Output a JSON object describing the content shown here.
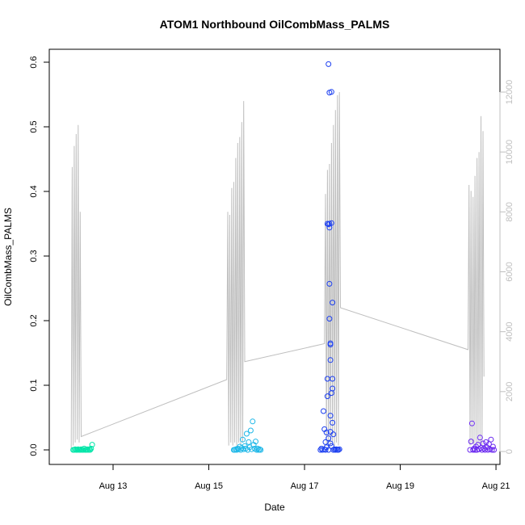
{
  "chart_data": {
    "type": "scatter",
    "title": "ATOM1 Northbound OilCombMass_PALMS",
    "xlabel": "Date",
    "ylabel": "OilCombMass_PALMS",
    "x_is_date": true,
    "x_range": [
      "2016-08-11T16:00",
      "2016-08-21T02:00"
    ],
    "x_ticks": [
      {
        "value": "2016-08-13",
        "label": "Aug 13"
      },
      {
        "value": "2016-08-15",
        "label": "Aug 15"
      },
      {
        "value": "2016-08-17",
        "label": "Aug 17"
      },
      {
        "value": "2016-08-19",
        "label": "Aug 19"
      },
      {
        "value": "2016-08-21",
        "label": "Aug 21"
      }
    ],
    "ylim": [
      0,
      0.6
    ],
    "y_ticks": [
      "0.0",
      "0.1",
      "0.2",
      "0.3",
      "0.4",
      "0.5",
      "0.6"
    ],
    "y2lim": [
      0,
      12000
    ],
    "y2_ticks": [
      "0",
      "2000",
      "4000",
      "6000",
      "8000",
      "10000",
      "12000"
    ],
    "grid": false,
    "legend": "none",
    "colors": {
      "altitude_line": "#bfbfbf",
      "flight_1": "#00e5a8",
      "flight_2": "#1fb8e8",
      "flight_3": "#1c3ff0",
      "flight_4": "#6a28f0",
      "axis": "#000000",
      "right_axis": "#bfbfbf"
    },
    "series": [
      {
        "color": "#00e5a8",
        "points": [
          [
            "2016-08-12T04:00",
            0.0
          ],
          [
            "2016-08-12T04:30",
            0.0
          ],
          [
            "2016-08-12T05:00",
            0.001
          ],
          [
            "2016-08-12T05:30",
            0.0
          ],
          [
            "2016-08-12T06:00",
            0.0
          ],
          [
            "2016-08-12T06:30",
            0.001
          ],
          [
            "2016-08-12T07:00",
            0.0
          ],
          [
            "2016-08-12T07:30",
            0.0
          ],
          [
            "2016-08-12T08:00",
            0.001
          ],
          [
            "2016-08-12T08:30",
            0.0
          ],
          [
            "2016-08-12T09:00",
            0.0
          ],
          [
            "2016-08-12T09:30",
            0.002
          ],
          [
            "2016-08-12T10:00",
            0.0
          ],
          [
            "2016-08-12T10:30",
            0.0
          ],
          [
            "2016-08-12T11:00",
            0.001
          ],
          [
            "2016-08-12T11:30",
            0.0
          ],
          [
            "2016-08-12T12:00",
            0.001
          ],
          [
            "2016-08-12T12:30",
            0.0
          ],
          [
            "2016-08-12T13:00",
            0.002
          ],
          [
            "2016-08-12T13:30",
            0.008
          ]
        ]
      },
      {
        "color": "#1fb8e8",
        "points": [
          [
            "2016-08-15T12:30",
            0.0
          ],
          [
            "2016-08-15T13:00",
            0.0
          ],
          [
            "2016-08-15T13:30",
            0.001
          ],
          [
            "2016-08-15T14:00",
            0.0
          ],
          [
            "2016-08-15T14:30",
            0.002
          ],
          [
            "2016-08-15T15:00",
            0.001
          ],
          [
            "2016-08-15T15:30",
            0.005
          ],
          [
            "2016-08-15T16:00",
            0.0
          ],
          [
            "2016-08-15T16:30",
            0.003
          ],
          [
            "2016-08-15T17:00",
            0.016
          ],
          [
            "2016-08-15T17:30",
            0.001
          ],
          [
            "2016-08-15T18:00",
            0.006
          ],
          [
            "2016-08-15T18:30",
            0.002
          ],
          [
            "2016-08-15T19:00",
            0.025
          ],
          [
            "2016-08-15T19:30",
            0.0
          ],
          [
            "2016-08-15T20:00",
            0.012
          ],
          [
            "2016-08-15T20:30",
            0.004
          ],
          [
            "2016-08-15T21:00",
            0.03
          ],
          [
            "2016-08-15T21:30",
            0.001
          ],
          [
            "2016-08-15T22:00",
            0.044
          ],
          [
            "2016-08-15T22:30",
            0.008
          ],
          [
            "2016-08-15T23:00",
            0.002
          ],
          [
            "2016-08-15T23:30",
            0.013
          ],
          [
            "2016-08-16T00:00",
            0.0
          ],
          [
            "2016-08-16T00:30",
            0.002
          ],
          [
            "2016-08-16T01:00",
            0.0
          ],
          [
            "2016-08-16T01:30",
            0.001
          ],
          [
            "2016-08-16T02:00",
            0.0
          ]
        ]
      },
      {
        "color": "#1c3ff0",
        "points": [
          [
            "2016-08-17T08:00",
            0.0
          ],
          [
            "2016-08-17T08:30",
            0.002
          ],
          [
            "2016-08-17T09:00",
            0.0
          ],
          [
            "2016-08-17T09:30",
            0.06
          ],
          [
            "2016-08-17T10:00",
            0.001
          ],
          [
            "2016-08-17T10:00",
            0.032
          ],
          [
            "2016-08-17T10:30",
            0.012
          ],
          [
            "2016-08-17T10:30",
            0.0
          ],
          [
            "2016-08-17T11:00",
            0.027
          ],
          [
            "2016-08-17T11:00",
            0.004
          ],
          [
            "2016-08-17T11:30",
            0.11
          ],
          [
            "2016-08-17T11:30",
            0.35
          ],
          [
            "2016-08-17T11:30",
            0.083
          ],
          [
            "2016-08-17T12:00",
            0.597
          ],
          [
            "2016-08-17T12:00",
            0.349
          ],
          [
            "2016-08-17T12:00",
            0.018
          ],
          [
            "2016-08-17T12:00",
            0.0
          ],
          [
            "2016-08-17T12:30",
            0.35
          ],
          [
            "2016-08-17T12:30",
            0.344
          ],
          [
            "2016-08-17T12:30",
            0.553
          ],
          [
            "2016-08-17T12:30",
            0.257
          ],
          [
            "2016-08-17T12:30",
            0.203
          ],
          [
            "2016-08-17T13:00",
            0.165
          ],
          [
            "2016-08-17T13:00",
            0.163
          ],
          [
            "2016-08-17T13:00",
            0.139
          ],
          [
            "2016-08-17T13:00",
            0.028
          ],
          [
            "2016-08-17T13:00",
            0.053
          ],
          [
            "2016-08-17T13:00",
            0.01
          ],
          [
            "2016-08-17T13:30",
            0.554
          ],
          [
            "2016-08-17T13:30",
            0.351
          ],
          [
            "2016-08-17T13:30",
            0.088
          ],
          [
            "2016-08-17T13:30",
            0.006
          ],
          [
            "2016-08-17T14:00",
            0.228
          ],
          [
            "2016-08-17T14:00",
            0.11
          ],
          [
            "2016-08-17T14:00",
            0.095
          ],
          [
            "2016-08-17T14:00",
            0.042
          ],
          [
            "2016-08-17T14:30",
            0.024
          ],
          [
            "2016-08-17T14:30",
            0.0
          ],
          [
            "2016-08-17T15:00",
            0.001
          ],
          [
            "2016-08-17T15:30",
            0.0
          ],
          [
            "2016-08-17T16:00",
            0.001
          ],
          [
            "2016-08-17T16:30",
            0.0
          ],
          [
            "2016-08-17T17:00",
            0.0
          ],
          [
            "2016-08-17T17:30",
            0.001
          ]
        ]
      },
      {
        "color": "#6a28f0",
        "points": [
          [
            "2016-08-20T11:00",
            0.0
          ],
          [
            "2016-08-20T11:30",
            0.013
          ],
          [
            "2016-08-20T12:00",
            0.041
          ],
          [
            "2016-08-20T12:30",
            0.0
          ],
          [
            "2016-08-20T13:00",
            0.002
          ],
          [
            "2016-08-20T13:30",
            0.0
          ],
          [
            "2016-08-20T14:00",
            0.005
          ],
          [
            "2016-08-20T14:30",
            0.0
          ],
          [
            "2016-08-20T15:00",
            0.008
          ],
          [
            "2016-08-20T15:30",
            0.001
          ],
          [
            "2016-08-20T16:00",
            0.019
          ],
          [
            "2016-08-20T16:30",
            0.003
          ],
          [
            "2016-08-20T17:00",
            0.0
          ],
          [
            "2016-08-20T17:30",
            0.01
          ],
          [
            "2016-08-20T18:00",
            0.002
          ],
          [
            "2016-08-20T18:30",
            0.0
          ],
          [
            "2016-08-20T19:00",
            0.012
          ],
          [
            "2016-08-20T19:30",
            0.004
          ],
          [
            "2016-08-20T20:00",
            0.0
          ],
          [
            "2016-08-20T20:30",
            0.009
          ],
          [
            "2016-08-20T21:00",
            0.001
          ],
          [
            "2016-08-20T21:30",
            0.016
          ],
          [
            "2016-08-20T22:00",
            0.0
          ],
          [
            "2016-08-20T22:30",
            0.005
          ],
          [
            "2016-08-20T23:00",
            0.0
          ]
        ]
      }
    ],
    "altitude": [
      [
        "2016-08-12T03:00",
        100
      ],
      [
        "2016-08-12T03:30",
        9500
      ],
      [
        "2016-08-12T04:00",
        200
      ],
      [
        "2016-08-12T04:30",
        10200
      ],
      [
        "2016-08-12T05:00",
        300
      ],
      [
        "2016-08-12T05:30",
        10600
      ],
      [
        "2016-08-12T06:00",
        400
      ],
      [
        "2016-08-12T06:30",
        10900
      ],
      [
        "2016-08-12T07:00",
        300
      ],
      [
        "2016-08-12T07:30",
        8000
      ],
      [
        "2016-08-12T08:00",
        500
      ],
      [
        "2016-08-15T09:00",
        2400
      ],
      [
        "2016-08-15T09:30",
        8000
      ],
      [
        "2016-08-15T10:00",
        200
      ],
      [
        "2016-08-15T10:30",
        7900
      ],
      [
        "2016-08-15T11:00",
        300
      ],
      [
        "2016-08-15T11:30",
        8800
      ],
      [
        "2016-08-15T12:00",
        200
      ],
      [
        "2016-08-15T12:30",
        9000
      ],
      [
        "2016-08-15T13:00",
        300
      ],
      [
        "2016-08-15T13:30",
        9800
      ],
      [
        "2016-08-15T14:00",
        200
      ],
      [
        "2016-08-15T14:30",
        10300
      ],
      [
        "2016-08-15T15:00",
        300
      ],
      [
        "2016-08-15T15:30",
        10500
      ],
      [
        "2016-08-15T16:00",
        200
      ],
      [
        "2016-08-15T16:30",
        11000
      ],
      [
        "2016-08-15T17:00",
        300
      ],
      [
        "2016-08-15T17:30",
        11700
      ],
      [
        "2016-08-15T18:00",
        3000
      ],
      [
        "2016-08-17T10:00",
        3600
      ],
      [
        "2016-08-17T10:30",
        8600
      ],
      [
        "2016-08-17T11:00",
        200
      ],
      [
        "2016-08-17T11:30",
        9400
      ],
      [
        "2016-08-17T12:00",
        300
      ],
      [
        "2016-08-17T12:30",
        9600
      ],
      [
        "2016-08-17T13:00",
        200
      ],
      [
        "2016-08-17T13:30",
        10300
      ],
      [
        "2016-08-17T14:00",
        300
      ],
      [
        "2016-08-17T14:30",
        10900
      ],
      [
        "2016-08-17T15:00",
        200
      ],
      [
        "2016-08-17T15:30",
        11400
      ],
      [
        "2016-08-17T16:00",
        300
      ],
      [
        "2016-08-17T16:30",
        11900
      ],
      [
        "2016-08-17T17:00",
        200
      ],
      [
        "2016-08-17T17:30",
        12000
      ],
      [
        "2016-08-17T18:00",
        4800
      ],
      [
        "2016-08-20T10:00",
        3400
      ],
      [
        "2016-08-20T10:30",
        8900
      ],
      [
        "2016-08-20T11:00",
        200
      ],
      [
        "2016-08-20T11:30",
        8700
      ],
      [
        "2016-08-20T12:00",
        300
      ],
      [
        "2016-08-20T12:30",
        8500
      ],
      [
        "2016-08-20T13:00",
        200
      ],
      [
        "2016-08-20T13:30",
        9200
      ],
      [
        "2016-08-20T14:00",
        300
      ],
      [
        "2016-08-20T14:30",
        9800
      ],
      [
        "2016-08-20T15:00",
        200
      ],
      [
        "2016-08-20T15:30",
        10000
      ],
      [
        "2016-08-20T16:00",
        300
      ],
      [
        "2016-08-20T16:30",
        11200
      ],
      [
        "2016-08-20T17:00",
        200
      ],
      [
        "2016-08-20T17:30",
        10700
      ],
      [
        "2016-08-20T18:00",
        2500
      ]
    ]
  }
}
